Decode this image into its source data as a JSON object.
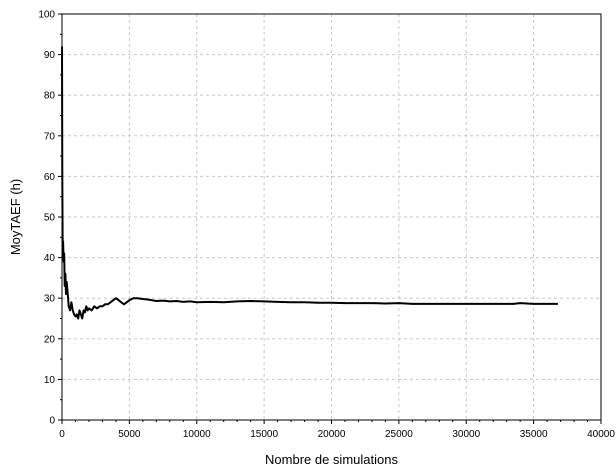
{
  "chart_data": {
    "type": "line",
    "title": "",
    "xlabel": "Nombre de simulations",
    "ylabel": "MoyTAEF (h)",
    "xlim": [
      0,
      40000
    ],
    "ylim": [
      0,
      100
    ],
    "xticks": [
      0,
      5000,
      10000,
      15000,
      20000,
      25000,
      30000,
      35000,
      40000
    ],
    "yticks": [
      0,
      10,
      20,
      30,
      40,
      50,
      60,
      70,
      80,
      90,
      100
    ],
    "xtick_labels": [
      "0",
      "5000",
      "10000",
      "15000",
      "20000",
      "25000",
      "30000",
      "35000",
      "40000"
    ],
    "ytick_labels": [
      "0",
      "10",
      "20",
      "30",
      "40",
      "50",
      "60",
      "70",
      "80",
      "90",
      "100"
    ],
    "grid": true,
    "grid_style": "dashed",
    "line_color": "#000000",
    "series": [
      {
        "x": [
          1,
          20,
          50,
          80,
          120,
          160,
          200,
          250,
          300,
          350,
          400,
          450,
          500,
          600,
          700,
          800,
          900,
          1000,
          1100,
          1200,
          1300,
          1400,
          1500,
          1600,
          1700,
          1800,
          1900,
          2000,
          2200,
          2400,
          2600,
          2800,
          3000,
          3200,
          3400,
          3600,
          3800,
          4000,
          4200,
          4400,
          4600,
          4800,
          5000,
          5300,
          5600,
          6000,
          6500,
          7000,
          7500,
          8000,
          8500,
          9000,
          9500,
          10000,
          11000,
          12000,
          13000,
          14000,
          15000,
          16000,
          17000,
          18000,
          19000,
          20000,
          21000,
          22000,
          23000,
          24000,
          25000,
          26000,
          28000,
          30000,
          32000,
          33500,
          34000,
          35000,
          36000,
          36800
        ],
        "y": [
          92,
          60,
          40,
          44,
          39,
          41,
          33,
          36,
          31,
          34,
          32,
          30,
          28,
          27,
          29,
          27,
          26,
          25.5,
          26,
          25,
          27,
          26,
          25,
          27,
          26.5,
          28,
          27,
          27.5,
          27,
          28,
          27.5,
          28,
          28,
          28.5,
          28.5,
          29,
          29.5,
          30,
          29.5,
          29,
          28.5,
          29,
          29.5,
          30,
          30,
          29.8,
          29.6,
          29.3,
          29.4,
          29.2,
          29.3,
          29.1,
          29.2,
          29.0,
          29.1,
          29.0,
          29.2,
          29.3,
          29.2,
          29.1,
          29.0,
          29.0,
          28.9,
          28.9,
          28.8,
          28.8,
          28.8,
          28.7,
          28.8,
          28.6,
          28.6,
          28.6,
          28.6,
          28.6,
          28.8,
          28.6,
          28.6,
          28.6
        ]
      }
    ]
  }
}
